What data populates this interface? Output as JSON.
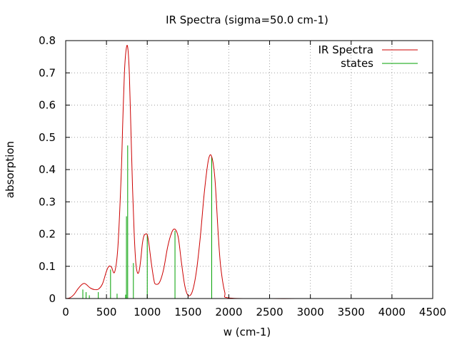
{
  "chart_data": {
    "type": "line",
    "title": "IR Spectra (sigma=50.0 cm-1)",
    "xlabel": "w (cm-1)",
    "ylabel": "absorption",
    "xlim": [
      0,
      4500
    ],
    "ylim": [
      0,
      0.8
    ],
    "x_ticks": [
      0,
      500,
      1000,
      1500,
      2000,
      2500,
      3000,
      3500,
      4000,
      4500
    ],
    "y_ticks": [
      0,
      0.1,
      0.2,
      0.3,
      0.4,
      0.5,
      0.6,
      0.7,
      0.8
    ],
    "grid": true,
    "legend_position": "top-right",
    "series": [
      {
        "name": "IR Spectra",
        "color": "#cc0000",
        "style": "line",
        "x": [
          0,
          50,
          100,
          150,
          200,
          230,
          260,
          300,
          350,
          400,
          450,
          500,
          530,
          560,
          600,
          640,
          680,
          700,
          720,
          740,
          760,
          780,
          800,
          820,
          840,
          860,
          880,
          900,
          920,
          940,
          960,
          980,
          1000,
          1020,
          1050,
          1080,
          1100,
          1150,
          1200,
          1250,
          1300,
          1340,
          1380,
          1420,
          1460,
          1500,
          1550,
          1600,
          1650,
          1700,
          1750,
          1790,
          1830,
          1870,
          1900,
          1950,
          2000,
          2500,
          3000,
          3500,
          4000,
          4500
        ],
        "y": [
          0,
          0.002,
          0.012,
          0.03,
          0.044,
          0.047,
          0.042,
          0.033,
          0.028,
          0.029,
          0.045,
          0.085,
          0.1,
          0.098,
          0.082,
          0.16,
          0.38,
          0.55,
          0.7,
          0.77,
          0.78,
          0.7,
          0.52,
          0.34,
          0.2,
          0.11,
          0.08,
          0.085,
          0.12,
          0.17,
          0.195,
          0.2,
          0.198,
          0.17,
          0.11,
          0.06,
          0.045,
          0.05,
          0.09,
          0.16,
          0.205,
          0.215,
          0.19,
          0.11,
          0.04,
          0.01,
          0.02,
          0.08,
          0.19,
          0.33,
          0.43,
          0.44,
          0.37,
          0.2,
          0.1,
          0.02,
          0.002,
          0,
          0,
          0,
          0,
          0
        ]
      },
      {
        "name": "states",
        "color": "#00a000",
        "style": "impulses",
        "x": [
          210,
          250,
          290,
          400,
          550,
          630,
          735,
          745,
          760,
          830,
          1000,
          1340,
          1790
        ],
        "y": [
          0.028,
          0.02,
          0.01,
          0.02,
          0.09,
          0.015,
          0.012,
          0.255,
          0.475,
          0.11,
          0.2,
          0.21,
          0.44
        ]
      }
    ]
  }
}
